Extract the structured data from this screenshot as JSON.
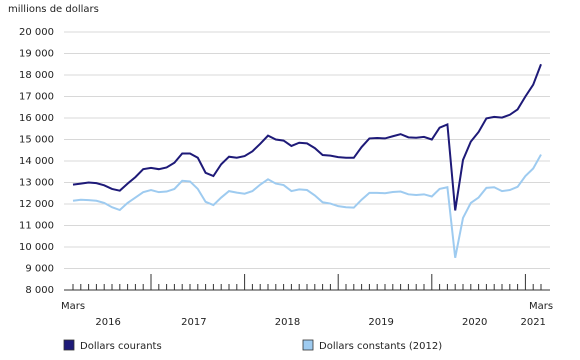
{
  "chart_data": {
    "type": "line",
    "y_label": "millions de dollars",
    "categories": [
      "Mars",
      null,
      null,
      null,
      null,
      null,
      null,
      null,
      null,
      null,
      null,
      null,
      null,
      null,
      null,
      null,
      null,
      null,
      null,
      null,
      null,
      null,
      null,
      null,
      null,
      null,
      null,
      null,
      null,
      null,
      null,
      null,
      null,
      null,
      null,
      null,
      null,
      null,
      null,
      null,
      null,
      null,
      null,
      null,
      null,
      null,
      null,
      null,
      null,
      null,
      null,
      null,
      null,
      null,
      null,
      null,
      null,
      null,
      null,
      null,
      "Mars"
    ],
    "x_groups": [
      {
        "label": "2016",
        "size": 10
      },
      {
        "label": "2017",
        "size": 12
      },
      {
        "label": "2018",
        "size": 12
      },
      {
        "label": "2019",
        "size": 12
      },
      {
        "label": "2020",
        "size": 12
      },
      {
        "label": "2021",
        "size": 3
      }
    ],
    "series": [
      {
        "name": "Dollars courants",
        "color": "#1e1a78",
        "values": [
          12900,
          12950,
          13000,
          12970,
          12870,
          12700,
          12620,
          12950,
          13250,
          13620,
          13680,
          13620,
          13700,
          13920,
          14350,
          14350,
          14150,
          13450,
          13300,
          13850,
          14200,
          14150,
          14230,
          14450,
          14800,
          15180,
          15000,
          14950,
          14700,
          14850,
          14820,
          14600,
          14280,
          14250,
          14180,
          14150,
          14150,
          14650,
          15050,
          15070,
          15050,
          15150,
          15250,
          15100,
          15080,
          15120,
          15000,
          15550,
          15700,
          11700,
          14050,
          14900,
          15350,
          15980,
          16050,
          16020,
          16150,
          16400,
          17000,
          17550,
          18500
        ]
      },
      {
        "name": "Dollars constants (2012)",
        "color": "#9ecbf0",
        "values": [
          12150,
          12200,
          12180,
          12150,
          12050,
          11850,
          11720,
          12050,
          12300,
          12550,
          12650,
          12550,
          12580,
          12700,
          13080,
          13050,
          12700,
          12100,
          11950,
          12300,
          12600,
          12530,
          12480,
          12600,
          12900,
          13150,
          12950,
          12880,
          12600,
          12680,
          12650,
          12400,
          12080,
          12020,
          11900,
          11850,
          11830,
          12200,
          12520,
          12520,
          12500,
          12560,
          12580,
          12450,
          12420,
          12450,
          12350,
          12700,
          12780,
          9500,
          11350,
          12050,
          12300,
          12750,
          12780,
          12600,
          12650,
          12800,
          13300,
          13650,
          14300
        ]
      }
    ],
    "ylim": [
      8000,
      20000
    ],
    "yticks": [
      {
        "value": 8000,
        "label": "8 000"
      },
      {
        "value": 9000,
        "label": "9 000"
      },
      {
        "value": 10000,
        "label": "10 000"
      },
      {
        "value": 11000,
        "label": "11 000"
      },
      {
        "value": 12000,
        "label": "12 000"
      },
      {
        "value": 13000,
        "label": "13 000"
      },
      {
        "value": 14000,
        "label": "14 000"
      },
      {
        "value": 15000,
        "label": "15 000"
      },
      {
        "value": 16000,
        "label": "16 000"
      },
      {
        "value": 17000,
        "label": "17 000"
      },
      {
        "value": 18000,
        "label": "18 000"
      },
      {
        "value": 19000,
        "label": "19 000"
      },
      {
        "value": 20000,
        "label": "20 000"
      }
    ],
    "grid": true
  }
}
